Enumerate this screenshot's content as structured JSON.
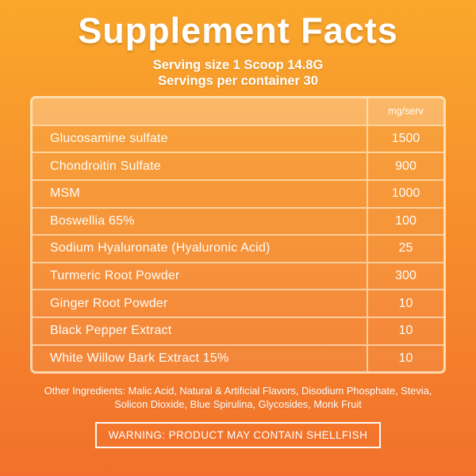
{
  "label": {
    "title": "Supplement Facts",
    "serving_size": "Serving size 1 Scoop 14.8G",
    "servings_per_container": "Servings per container 30",
    "table": {
      "unit_header": "mg/serv",
      "rows": [
        {
          "name": "Glucosamine sulfate",
          "amount": "1500"
        },
        {
          "name": "Chondroitin Sulfate",
          "amount": "900"
        },
        {
          "name": "MSM",
          "amount": "1000"
        },
        {
          "name": "Boswellia 65%",
          "amount": "100"
        },
        {
          "name": "Sodium Hyaluronate (Hyaluronic Acid)",
          "amount": "25"
        },
        {
          "name": "Turmeric Root Powder",
          "amount": "300"
        },
        {
          "name": "Ginger Root Powder",
          "amount": "10"
        },
        {
          "name": "Black Pepper Extract",
          "amount": "10"
        },
        {
          "name": "White Willow Bark Extract 15%",
          "amount": "10"
        }
      ]
    },
    "other_ingredients_line1": "Other Ingredients: Malic Acid, Natural & Artificial Flavors, Disodium Phosphate, Stevia,",
    "other_ingredients_line2": "Solicon Dioxide, Blue Spirulina, Glycosides, Monk Fruit",
    "warning": "WARNING: PRODUCT MAY CONTAIN SHELLFISH",
    "colors": {
      "background_top": "#F9A72B",
      "background_bottom": "#F2702B",
      "text": "#FFFFFF",
      "table_border": "#FBE0B4"
    }
  }
}
